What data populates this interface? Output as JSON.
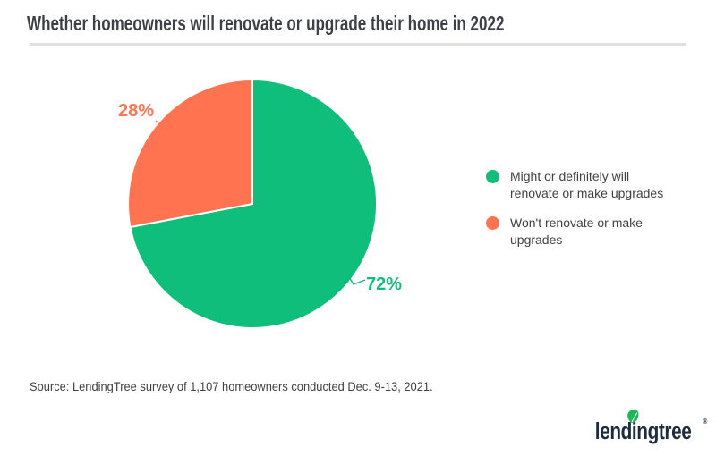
{
  "header": {
    "title": "Whether homeowners will renovate or upgrade their home in 2022"
  },
  "chart_data": {
    "type": "pie",
    "title": "Whether homeowners will renovate or upgrade their home in 2022",
    "slices": [
      {
        "label": "Might or definitely will renovate or make upgrades",
        "value": 72,
        "color": "#0fbe7b"
      },
      {
        "label": "Won't renovate or make upgrades",
        "value": 28,
        "color": "#ff7350"
      }
    ],
    "start_angle_deg": 0,
    "direction": "clockwise",
    "value_suffix": "%",
    "legend_position": "right",
    "data_labels": [
      "72%",
      "28%"
    ]
  },
  "source": {
    "text": "Source: LendingTree survey of 1,107 homeowners conducted Dec. 9-13, 2021."
  },
  "logo": {
    "brand": "lendingtree",
    "registered": "®"
  },
  "colors": {
    "title_text": "#3d4147",
    "body_text": "#414042",
    "divider": "#e1e1e1",
    "slice_green": "#0fbe7b",
    "slice_orange": "#ff7350",
    "logo_navy": "#1d2d3e",
    "leaf_green": "#1fb65a",
    "background": "#ffffff"
  }
}
